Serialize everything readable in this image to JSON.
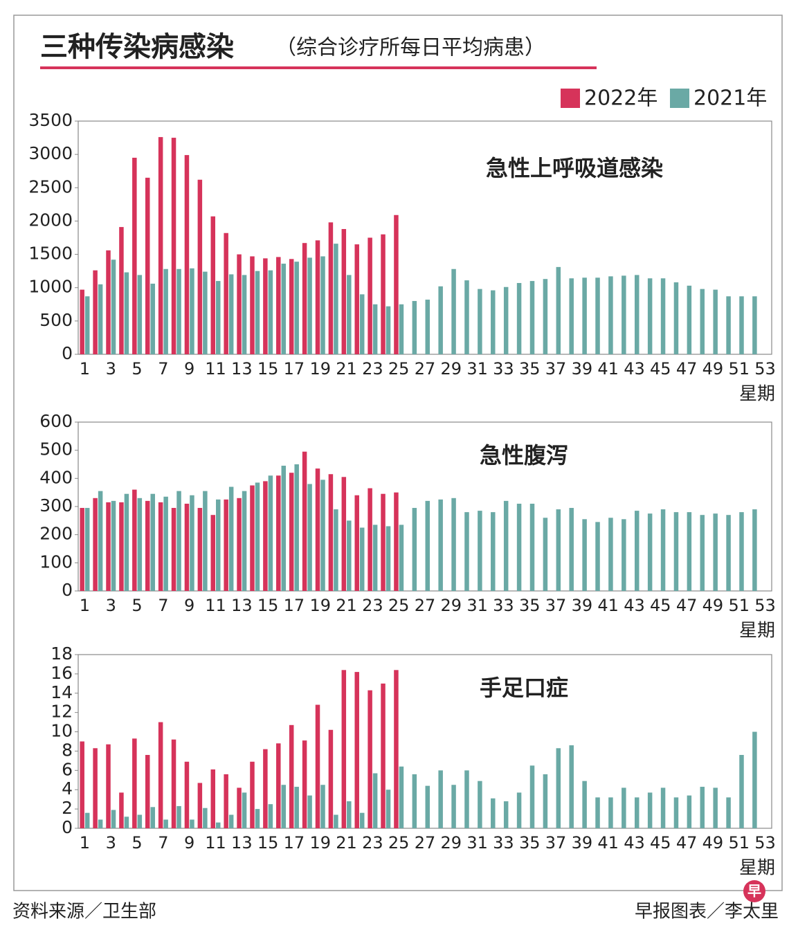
{
  "title": "三种传染病感染",
  "subtitle": "（综合诊疗所每日平均病患）",
  "source": "资料来源／卫生部",
  "credit": "早报图表／李太里",
  "logo": "早",
  "chart_data": [
    {
      "type": "bar",
      "title": "急性上呼吸道感染",
      "x_label": "星期",
      "categories": [
        1,
        null,
        3,
        null,
        5,
        null,
        7,
        null,
        9,
        null,
        11,
        null,
        13,
        null,
        15,
        null,
        17,
        null,
        19,
        null,
        21,
        null,
        23,
        null,
        25,
        null,
        27,
        null,
        29,
        null,
        31,
        null,
        33,
        null,
        35,
        null,
        37,
        null,
        39,
        null,
        41,
        null,
        43,
        null,
        45,
        null,
        47,
        null,
        49,
        null,
        51,
        null,
        53
      ],
      "series": [
        {
          "name": "2022年",
          "color": "#d6335a",
          "values": [
            970,
            1260,
            1560,
            1910,
            2950,
            2650,
            3260,
            3250,
            2990,
            2620,
            2070,
            1820,
            1500,
            1470,
            1440,
            1460,
            1430,
            1670,
            1710,
            1980,
            1880,
            1650,
            1750,
            1800,
            2090,
            null,
            null,
            null,
            null,
            null,
            null,
            null,
            null,
            null,
            null,
            null,
            null,
            null,
            null,
            null,
            null,
            null,
            null,
            null,
            null,
            null,
            null,
            null,
            null,
            null,
            null,
            null,
            null
          ]
        },
        {
          "name": "2021年",
          "color": "#6aa9a5",
          "values": [
            870,
            1050,
            1420,
            1230,
            1190,
            1060,
            1280,
            1280,
            1290,
            1240,
            1100,
            1200,
            1190,
            1250,
            1260,
            1360,
            1390,
            1450,
            1470,
            1660,
            1190,
            900,
            750,
            720,
            750,
            800,
            820,
            1020,
            1280,
            1110,
            980,
            960,
            1010,
            1070,
            1100,
            1130,
            1310,
            1140,
            1150,
            1150,
            1170,
            1180,
            1190,
            1140,
            1140,
            1080,
            1030,
            980,
            970,
            870,
            870,
            870,
            null
          ]
        }
      ],
      "ylim": [
        0,
        3500
      ],
      "yticks": [
        0,
        500,
        1000,
        1500,
        2000,
        2500,
        3000,
        3500
      ],
      "legend": "top-right"
    },
    {
      "type": "bar",
      "title": "急性腹泻",
      "x_label": "星期",
      "categories": [
        1,
        null,
        3,
        null,
        5,
        null,
        7,
        null,
        9,
        null,
        11,
        null,
        13,
        null,
        15,
        null,
        17,
        null,
        19,
        null,
        21,
        null,
        23,
        null,
        25,
        null,
        27,
        null,
        29,
        null,
        31,
        null,
        33,
        null,
        35,
        null,
        37,
        null,
        39,
        null,
        41,
        null,
        43,
        null,
        45,
        null,
        47,
        null,
        49,
        null,
        51,
        null,
        53
      ],
      "series": [
        {
          "name": "2022年",
          "color": "#d6335a",
          "values": [
            295,
            330,
            315,
            315,
            360,
            320,
            315,
            295,
            310,
            295,
            270,
            325,
            330,
            375,
            390,
            410,
            420,
            495,
            435,
            415,
            405,
            340,
            365,
            345,
            350,
            null,
            null,
            null,
            null,
            null,
            null,
            null,
            null,
            null,
            null,
            null,
            null,
            null,
            null,
            null,
            null,
            null,
            null,
            null,
            null,
            null,
            null,
            null,
            null,
            null,
            null,
            null,
            null
          ]
        },
        {
          "name": "2021年",
          "color": "#6aa9a5",
          "values": [
            295,
            355,
            320,
            345,
            330,
            345,
            335,
            355,
            340,
            355,
            325,
            370,
            355,
            385,
            410,
            445,
            450,
            380,
            395,
            290,
            250,
            225,
            235,
            230,
            235,
            295,
            320,
            325,
            330,
            280,
            285,
            280,
            320,
            310,
            310,
            260,
            290,
            295,
            255,
            245,
            260,
            255,
            285,
            275,
            290,
            280,
            280,
            270,
            275,
            270,
            280,
            290,
            null
          ]
        }
      ],
      "ylim": [
        0,
        600
      ],
      "yticks": [
        0,
        100,
        200,
        300,
        400,
        500,
        600
      ]
    },
    {
      "type": "bar",
      "title": "手足口症",
      "x_label": "星期",
      "categories": [
        1,
        null,
        3,
        null,
        5,
        null,
        7,
        null,
        9,
        null,
        11,
        null,
        13,
        null,
        15,
        null,
        17,
        null,
        19,
        null,
        21,
        null,
        23,
        null,
        25,
        null,
        27,
        null,
        29,
        null,
        31,
        null,
        33,
        null,
        35,
        null,
        37,
        null,
        39,
        null,
        41,
        null,
        43,
        null,
        45,
        null,
        47,
        null,
        49,
        null,
        51,
        null,
        53
      ],
      "series": [
        {
          "name": "2022年",
          "color": "#d6335a",
          "values": [
            9,
            8.3,
            8.7,
            3.7,
            9.3,
            7.6,
            11,
            9.2,
            6.9,
            4.7,
            6.1,
            5.6,
            4.2,
            6.9,
            8.2,
            8.8,
            10.7,
            9.1,
            12.8,
            10.2,
            16.4,
            16.2,
            14.3,
            15,
            16.4,
            null,
            null,
            null,
            null,
            null,
            null,
            null,
            null,
            null,
            null,
            null,
            null,
            null,
            null,
            null,
            null,
            null,
            null,
            null,
            null,
            null,
            null,
            null,
            null,
            null,
            null,
            null,
            null
          ]
        },
        {
          "name": "2021年",
          "color": "#6aa9a5",
          "values": [
            1.6,
            0.9,
            1.9,
            1.2,
            1.4,
            2.2,
            0.9,
            2.3,
            0.9,
            2.1,
            0.6,
            1.4,
            3.7,
            2,
            2.5,
            4.5,
            4.3,
            3.4,
            4.5,
            1.4,
            2.8,
            1.6,
            5.7,
            4,
            6.4,
            5.6,
            4.4,
            6,
            4.5,
            6,
            4.9,
            3.1,
            2.8,
            3.7,
            6.5,
            5.6,
            8.3,
            8.6,
            4.9,
            3.2,
            3.2,
            4.2,
            3.2,
            3.7,
            4.2,
            3.2,
            3.4,
            4.3,
            4.2,
            3.2,
            7.6,
            10,
            null
          ]
        }
      ],
      "ylim": [
        0,
        18
      ],
      "yticks": [
        0,
        2,
        4,
        6,
        8,
        10,
        12,
        14,
        16,
        18
      ]
    }
  ]
}
